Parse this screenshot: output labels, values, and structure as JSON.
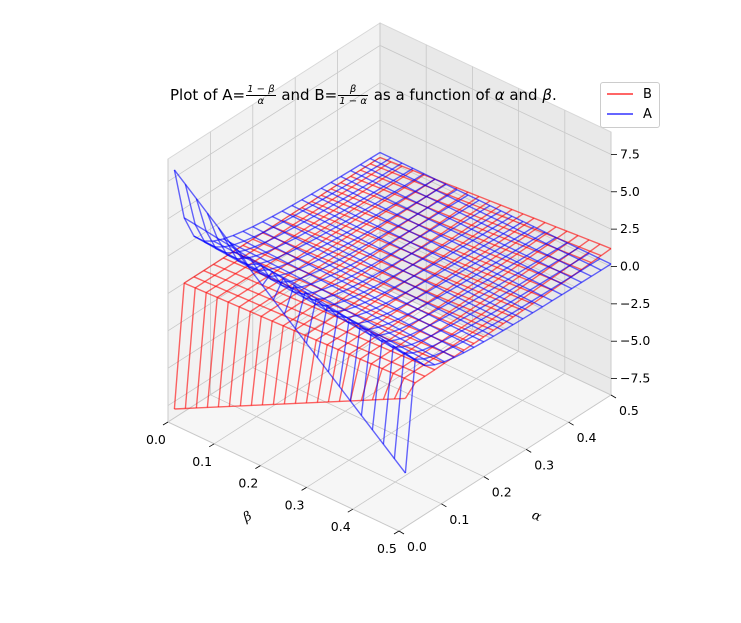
{
  "chart_data": {
    "type": "surface-wireframe-3d",
    "title": {
      "prefix": "Plot of A=",
      "a_num": "1 − β",
      "a_den": "α",
      "mid": " and B=",
      "b_num": "β",
      "b_den": "1 − α",
      "suffix_pre": " as a function of ",
      "sym_alpha": "α",
      "word_and": " and ",
      "sym_beta": "β",
      "period": "."
    },
    "xlabel": "β",
    "ylabel": "α",
    "xlim": [
      0,
      0.5
    ],
    "ylim": [
      0,
      0.5
    ],
    "zlim": [
      -8.6,
      9.0
    ],
    "x_ticks": [
      0.0,
      0.1,
      0.2,
      0.3,
      0.4,
      0.5
    ],
    "x_tick_labels": [
      "0.0",
      "0.1",
      "0.2",
      "0.3",
      "0.4",
      "0.5"
    ],
    "y_ticks": [
      0.0,
      0.1,
      0.2,
      0.3,
      0.4,
      0.5
    ],
    "y_tick_labels": [
      "0.0",
      "0.1",
      "0.2",
      "0.3",
      "0.4",
      "0.5"
    ],
    "z_ticks": [
      -7.5,
      -5.0,
      -2.5,
      0.0,
      2.5,
      5.0,
      7.5
    ],
    "z_tick_labels": [
      "−7.5",
      "−5.0",
      "−2.5",
      "0.0",
      "2.5",
      "5.0",
      "7.5"
    ],
    "grid": true,
    "legend_position": "top-right",
    "series": [
      {
        "name": "B",
        "color": "#ff0000",
        "alpha": 0.6,
        "corners": {
          "beta0_alpha0": 0.0,
          "beta05_alpha0": 0.5,
          "beta0_alpha05": 0.0,
          "beta05_alpha05": 1.0
        },
        "edge_alpha0_values": [
          -8.0,
          0.0
        ],
        "grid_lines": 22
      },
      {
        "name": "A",
        "color": "#0000ff",
        "alpha": 0.6,
        "corners": {
          "beta0_alpha0": 10.0,
          "beta05_alpha0": 5.0,
          "beta0_alpha05": 2.0,
          "beta05_alpha05": 1.0
        },
        "edge_alpha0_values": [
          8.0,
          -5.0
        ],
        "grid_lines": 22
      }
    ]
  }
}
